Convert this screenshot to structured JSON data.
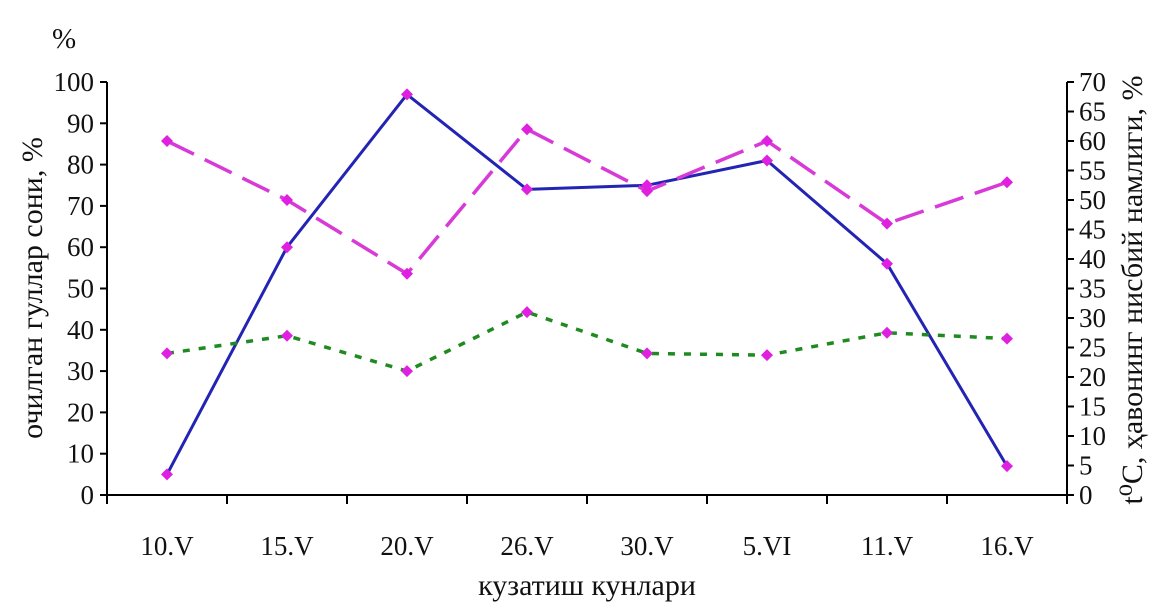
{
  "chart_data": {
    "type": "line",
    "categories": [
      "10.V",
      "15.V",
      "20.V",
      "26.V",
      "30.V",
      "5.VI",
      "11.V",
      "16.V"
    ],
    "xlabel": "кузатиш кунлари",
    "ylabel_left": "очилган гуллар сони,  %",
    "ylabel_right": "t⁰C,  ҳавонинг нисбий намлиги, %",
    "unit_left": "%",
    "unit_right": "%",
    "ylim_left": [
      0,
      100
    ],
    "ylim_right": [
      0,
      70
    ],
    "yticks_left": [
      "0",
      "10",
      "20",
      "30",
      "40",
      "50",
      "60",
      "70",
      "80",
      "90",
      "100"
    ],
    "yticks_right": [
      "0",
      "5",
      "10",
      "15",
      "20",
      "25",
      "30",
      "35",
      "40",
      "45",
      "50",
      "55",
      "60",
      "65",
      "70"
    ],
    "series": [
      {
        "axis": "left",
        "style": "solid",
        "color": "#2323b4",
        "marker_color": "#e020e0",
        "values": [
          5,
          60,
          97,
          74,
          75,
          81,
          56,
          7
        ]
      },
      {
        "axis": "right",
        "style": "dashed",
        "color": "#d83ad8",
        "marker_color": "#e020e0",
        "values": [
          60,
          50,
          37.5,
          62,
          51.5,
          60,
          46,
          53
        ]
      },
      {
        "axis": "right",
        "style": "dotted",
        "color": "#1f8a1f",
        "marker_color": "#e020e0",
        "values": [
          24,
          27,
          21,
          31,
          24,
          23.7,
          27.5,
          26.5
        ]
      }
    ]
  }
}
